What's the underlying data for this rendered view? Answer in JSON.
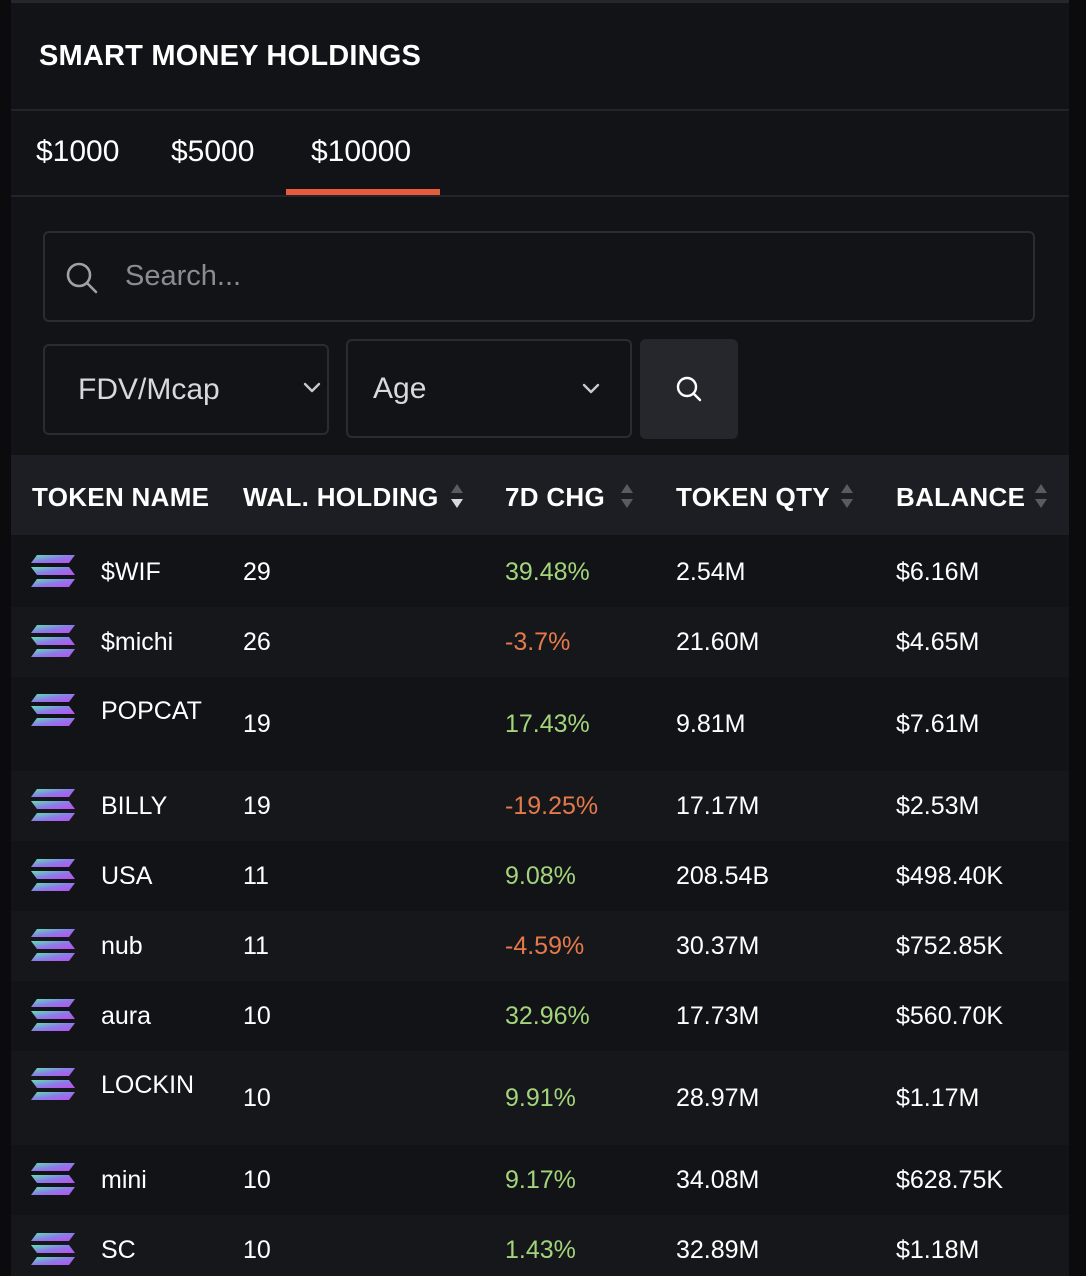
{
  "header": {
    "title": "SMART MONEY HOLDINGS"
  },
  "tabs": [
    {
      "label": "$1000"
    },
    {
      "label": "$5000"
    },
    {
      "label": "$10000",
      "active": true
    }
  ],
  "search": {
    "placeholder": "Search...",
    "value": ""
  },
  "filters": {
    "fdv": {
      "label": "FDV/Mcap"
    },
    "age": {
      "label": "Age"
    }
  },
  "table": {
    "columns": [
      "TOKEN NAME",
      "WAL. HOLDING",
      "7D CHG",
      "TOKEN QTY",
      "BALANCE"
    ],
    "rows": [
      {
        "token": "$WIF",
        "holding": "29",
        "change": "39.48%",
        "qty": "2.54M",
        "balance": "$6.16M"
      },
      {
        "token": "$michi",
        "holding": "26",
        "change": "-3.7%",
        "qty": "21.60M",
        "balance": "$4.65M"
      },
      {
        "token": "POPCAT",
        "holding": "19",
        "change": "17.43%",
        "qty": "9.81M",
        "balance": "$7.61M"
      },
      {
        "token": "BILLY",
        "holding": "19",
        "change": "-19.25%",
        "qty": "17.17M",
        "balance": "$2.53M"
      },
      {
        "token": "USA",
        "holding": "11",
        "change": "9.08%",
        "qty": "208.54B",
        "balance": "$498.40K"
      },
      {
        "token": "nub",
        "holding": "11",
        "change": "-4.59%",
        "qty": "30.37M",
        "balance": "$752.85K"
      },
      {
        "token": "aura",
        "holding": "10",
        "change": "32.96%",
        "qty": "17.73M",
        "balance": "$560.70K"
      },
      {
        "token": "LOCKIN",
        "holding": "10",
        "change": "9.91%",
        "qty": "28.97M",
        "balance": "$1.17M"
      },
      {
        "token": "mini",
        "holding": "10",
        "change": "9.17%",
        "qty": "34.08M",
        "balance": "$628.75K"
      },
      {
        "token": "SC",
        "holding": "10",
        "change": "1.43%",
        "qty": "32.89M",
        "balance": "$1.18M"
      }
    ]
  },
  "colors": {
    "accent": "#e55b3c",
    "positive": "#a3d47c",
    "negative": "#e5794a"
  },
  "icons": {
    "token_logo": "solana-logo-icon",
    "search": "search-icon",
    "dropdown": "chevron-down-icon",
    "sort": "sort-icon"
  }
}
